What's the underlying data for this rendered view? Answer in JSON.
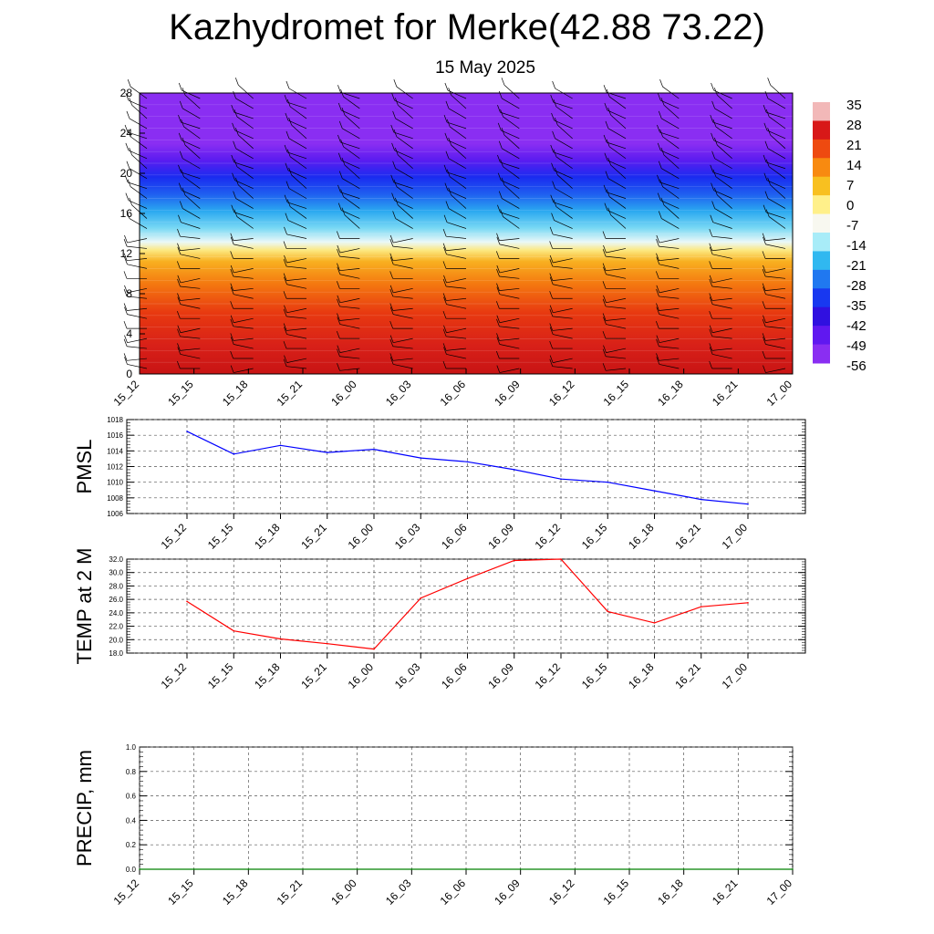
{
  "header": {
    "title": "Kazhydromet for Merke(42.88 73.22)",
    "date": "15 May 2025"
  },
  "chart_data": [
    {
      "type": "heatmap",
      "panel": "cross-section",
      "x_labels": [
        "15_12",
        "15_15",
        "15_18",
        "15_21",
        "16_00",
        "16_03",
        "16_06",
        "16_09",
        "16_12",
        "16_15",
        "16_18",
        "16_21",
        "17_00"
      ],
      "y_ticks": [
        "0",
        "4",
        "8",
        "12",
        "16",
        "20",
        "24",
        "28"
      ],
      "ylim": [
        0,
        28
      ],
      "colorbar": {
        "labels": [
          "35",
          "28",
          "21",
          "14",
          "7",
          "0",
          "-7",
          "-14",
          "-21",
          "-28",
          "-35",
          "-42",
          "-49",
          "-56"
        ],
        "colors": [
          "#f2b8b8",
          "#d81818",
          "#ee4a10",
          "#f88a10",
          "#f8c020",
          "#fff08a",
          "#f8f8f0",
          "#a8ecf8",
          "#30b8f0",
          "#2078f0",
          "#1838f0",
          "#3010e0",
          "#6018f0",
          "#8a2ef2"
        ]
      },
      "wind_barbs": true
    },
    {
      "type": "line",
      "ylabel": "PMSL",
      "x_labels": [
        "15_12",
        "15_15",
        "15_18",
        "15_21",
        "16_00",
        "16_03",
        "16_06",
        "16_09",
        "16_12",
        "16_15",
        "16_18",
        "16_21",
        "17_00"
      ],
      "values": [
        1016.5,
        1013.6,
        1014.7,
        1013.8,
        1014.2,
        1013.1,
        1012.6,
        1011.6,
        1010.4,
        1010.0,
        1008.9,
        1007.8,
        1007.2
      ],
      "ylim": [
        1006,
        1018
      ],
      "y_ticks": [
        "1006",
        "1008",
        "1010",
        "1012",
        "1014",
        "1016",
        "1018"
      ],
      "color": "#0000ff"
    },
    {
      "type": "line",
      "ylabel": "TEMP at 2 M",
      "x_labels": [
        "15_12",
        "15_15",
        "15_18",
        "15_21",
        "16_00",
        "16_03",
        "16_06",
        "16_09",
        "16_12",
        "16_15",
        "16_18",
        "16_21",
        "17_00"
      ],
      "values": [
        25.7,
        21.3,
        20.1,
        19.4,
        18.6,
        26.2,
        29.1,
        31.8,
        32.0,
        24.2,
        22.5,
        24.9,
        25.5
      ],
      "ylim": [
        18,
        32
      ],
      "y_ticks": [
        "18.0",
        "20.0",
        "22.0",
        "24.0",
        "26.0",
        "28.0",
        "30.0",
        "32.0"
      ],
      "color": "#ff0000"
    },
    {
      "type": "line",
      "ylabel": "PRECIP, mm",
      "x_labels": [
        "15_12",
        "15_15",
        "15_18",
        "15_21",
        "16_00",
        "16_03",
        "16_06",
        "16_09",
        "16_12",
        "16_15",
        "16_18",
        "16_21",
        "17_00"
      ],
      "values": [
        0,
        0,
        0,
        0,
        0,
        0,
        0,
        0,
        0,
        0,
        0,
        0,
        0
      ],
      "ylim": [
        0,
        1
      ],
      "y_ticks": [
        "0.0",
        "0.2",
        "0.4",
        "0.6",
        "0.8",
        "1.0"
      ],
      "color": "#008000"
    }
  ]
}
